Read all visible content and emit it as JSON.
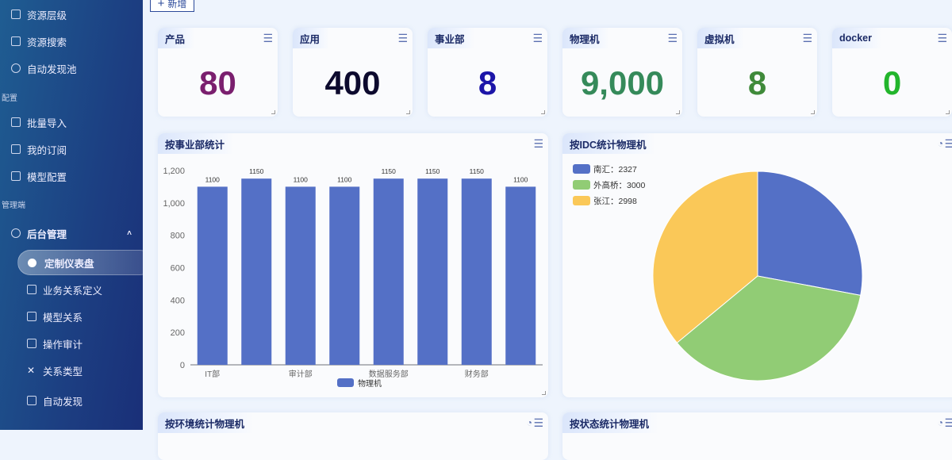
{
  "sidebar": {
    "items": [
      {
        "label": "资源层级",
        "icon": "layers-icon"
      },
      {
        "label": "资源搜索",
        "icon": "search-list-icon"
      },
      {
        "label": "自动发现池",
        "icon": "compass-icon"
      }
    ],
    "group_config": "配置",
    "config_items": [
      {
        "label": "批量导入",
        "icon": "import-icon"
      },
      {
        "label": "我的订阅",
        "icon": "bookmark-icon"
      },
      {
        "label": "模型配置",
        "icon": "model-settings-icon"
      }
    ],
    "group_admin": "管理端",
    "admin": {
      "label": "后台管理",
      "icon": "gear-icon"
    },
    "admin_items": [
      {
        "label": "定制仪表盘",
        "icon": "pie-icon",
        "active": true
      },
      {
        "label": "业务关系定义",
        "icon": "list-icon"
      },
      {
        "label": "模型关系",
        "icon": "cube-icon"
      },
      {
        "label": "操作审计",
        "icon": "document-icon"
      },
      {
        "label": "关系类型",
        "icon": "relation-icon"
      },
      {
        "label": "自动发现",
        "icon": "discover-icon"
      }
    ]
  },
  "toolbar": {
    "add_label": "新增"
  },
  "stats": [
    {
      "title": "产品",
      "value": "80",
      "color": "#7a1f6e"
    },
    {
      "title": "应用",
      "value": "400",
      "color": "#0d0a2e"
    },
    {
      "title": "事业部",
      "value": "8",
      "color": "#1c15a8"
    },
    {
      "title": "物理机",
      "value": "9,000",
      "color": "#358a5a"
    },
    {
      "title": "虚拟机",
      "value": "8",
      "color": "#3f8a3a"
    },
    {
      "title": "docker",
      "value": "0",
      "color": "#22b52c"
    }
  ],
  "panels": {
    "bar_title": "按事业部统计",
    "pie_title": "按IDC统计物理机",
    "env_title": "按环境统计物理机",
    "status_title": "按状态统计物理机"
  },
  "chart_data": [
    {
      "type": "bar",
      "categories": [
        "IT部",
        "",
        "审计部",
        "",
        "数据服务部",
        "",
        "财务部",
        ""
      ],
      "series": [
        {
          "name": "物理机",
          "values": [
            1100,
            1150,
            1100,
            1100,
            1150,
            1150,
            1150,
            1100
          ],
          "color": "#5470c6"
        }
      ],
      "yticks": [
        "0",
        "200",
        "400",
        "600",
        "800",
        "1,000",
        "1,200"
      ],
      "ylim": [
        0,
        1200
      ],
      "legend": "bottom"
    },
    {
      "type": "pie",
      "slices": [
        {
          "name": "南汇",
          "value": 2327,
          "label": "南汇：2327",
          "color": "#5470c6"
        },
        {
          "name": "外高桥",
          "value": 3000,
          "label": "外高桥：3000",
          "color": "#91cc75"
        },
        {
          "name": "张江",
          "value": 2998,
          "label": "张江：2998",
          "color": "#fac858"
        }
      ],
      "legend": "top-left"
    }
  ]
}
